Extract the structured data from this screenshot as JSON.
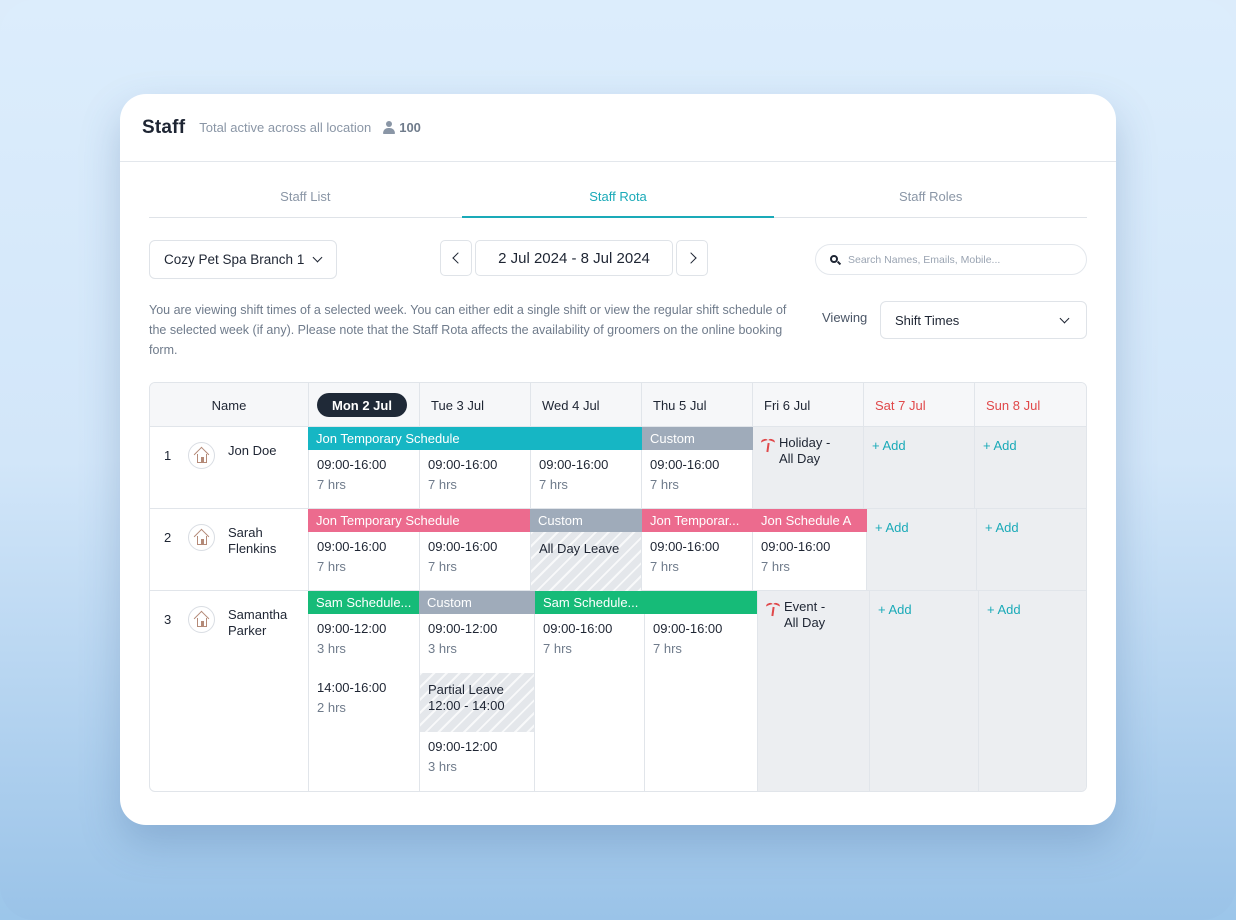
{
  "header": {
    "title": "Staff",
    "subtitle": "Total active across all location",
    "active_count": "100"
  },
  "tabs": [
    {
      "label": "Staff List",
      "active": false
    },
    {
      "label": "Staff Rota",
      "active": true
    },
    {
      "label": "Staff Roles",
      "active": false
    }
  ],
  "controls": {
    "branch": "Cozy Pet Spa Branch 1",
    "week_range": "2 Jul 2024 - 8 Jul 2024",
    "search_placeholder": "Search Names, Emails, Mobile...",
    "info_text": "You are viewing shift times of a selected week. You can either edit a single shift or view the regular shift schedule of the selected week (if any). Please note that the Staff Rota affects the availability of groomers on the online booking form.",
    "viewing_label": "Viewing",
    "viewing_value": "Shift Times"
  },
  "table": {
    "name_header": "Name",
    "days": [
      "Mon 2 Jul",
      "Tue 3 Jul",
      "Wed 4 Jul",
      "Thu 5 Jul",
      "Fri 6 Jul",
      "Sat 7 Jul",
      "Sun 8 Jul"
    ],
    "add_label": "+ Add",
    "staff": [
      {
        "num": "1",
        "name": "Jon Doe",
        "bands": {
          "a": "Jon Temporary Schedule",
          "b": "Custom"
        },
        "shifts": {
          "mon": {
            "time": "09:00-16:00",
            "hrs": "7 hrs"
          },
          "tue": {
            "time": "09:00-16:00",
            "hrs": "7 hrs"
          },
          "wed": {
            "time": "09:00-16:00",
            "hrs": "7 hrs"
          },
          "thu": {
            "time": "09:00-16:00",
            "hrs": "7 hrs"
          }
        },
        "fri_event": {
          "line1": "Holiday -",
          "line2": "All Day"
        }
      },
      {
        "num": "2",
        "name": "Sarah Flenkins",
        "bands": {
          "a": "Jon Temporary Schedule",
          "b": "Custom",
          "c": "Jon Temporar...",
          "d": "Jon Schedule A"
        },
        "shifts": {
          "mon": {
            "time": "09:00-16:00",
            "hrs": "7 hrs"
          },
          "tue": {
            "time": "09:00-16:00",
            "hrs": "7 hrs"
          },
          "thu": {
            "time": "09:00-16:00",
            "hrs": "7 hrs"
          },
          "fri": {
            "time": "09:00-16:00",
            "hrs": "7 hrs"
          }
        },
        "wed_leave": "All Day Leave"
      },
      {
        "num": "3",
        "name": "Samantha Parker",
        "bands": {
          "a": "Sam Schedule...",
          "b": "Custom",
          "c": "Sam Schedule..."
        },
        "shifts": {
          "mon1": {
            "time": "09:00-12:00",
            "hrs": "3 hrs"
          },
          "mon2": {
            "time": "14:00-16:00",
            "hrs": "2 hrs"
          },
          "tue1": {
            "time": "09:00-12:00",
            "hrs": "3 hrs"
          },
          "tue2": {
            "time": "09:00-12:00",
            "hrs": "3 hrs"
          },
          "wed": {
            "time": "09:00-16:00",
            "hrs": "7 hrs"
          },
          "thu": {
            "time": "09:00-16:00",
            "hrs": "7 hrs"
          }
        },
        "tue_leave": {
          "line1": "Partial Leave",
          "line2": "12:00 - 14:00"
        },
        "fri_event": {
          "line1": "Event -",
          "line2": "All Day"
        }
      }
    ]
  }
}
